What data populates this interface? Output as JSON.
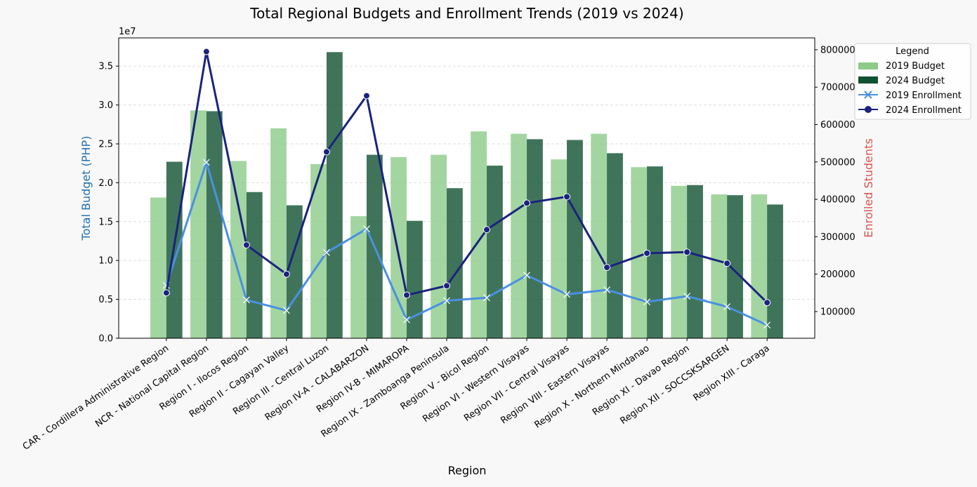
{
  "chart_data": {
    "type": "bar",
    "title": "Total Regional Budgets and Enrollment Trends (2019 vs 2024)",
    "xlabel": "Region",
    "ylabel": "Total Budget (PHP)",
    "ylabel_right": "Enrolled Students",
    "y_offset_label": "1e7",
    "ylim": [
      0,
      38630000
    ],
    "ylim_right": [
      28700,
      831700
    ],
    "yticks": [
      0.0,
      0.5,
      1.0,
      1.5,
      2.0,
      2.5,
      3.0,
      3.5
    ],
    "yticks_right": [
      100000,
      200000,
      300000,
      400000,
      500000,
      600000,
      700000,
      800000
    ],
    "grid": "horizontal dashed",
    "legend": {
      "title": "Legend",
      "placement": "outside-top-right"
    },
    "colors": {
      "budget_2019": "#8ccb88",
      "budget_2024": "#0f5132",
      "enroll_2019": "#4a90e2",
      "enroll_2024": "#1a237e",
      "ylabel_left": "#1f6fb0",
      "ylabel_right": "#d9534f"
    },
    "categories": [
      "CAR - Cordillera Administrative Region",
      "NCR - National Capital Region",
      "Region I - Ilocos Region",
      "Region II - Cagayan Valley",
      "Region III - Central Luzon",
      "Region IV-A - CALABARZON",
      "Region IV-B - MIMAROPA",
      "Region IX - Zamboanga Peninsula",
      "Region V - Bicol Region",
      "Region VI - Western Visayas",
      "Region VII - Central Visayas",
      "Region VIII - Eastern Visayas",
      "Region X - Northern Mindanao",
      "Region XI - Davao Region",
      "Region XII - SOCCSKSARGEN",
      "Region XIII - Caraga"
    ],
    "series": [
      {
        "name": "2019 Budget",
        "kind": "bar",
        "axis": "left",
        "values": [
          18100000,
          29300000,
          22800000,
          27000000,
          22400000,
          15700000,
          23300000,
          23600000,
          26600000,
          26300000,
          23000000,
          26300000,
          22000000,
          19600000,
          18500000,
          18500000
        ]
      },
      {
        "name": "2024 Budget",
        "kind": "bar",
        "axis": "left",
        "values": [
          22700000,
          29200000,
          18800000,
          17100000,
          36800000,
          23600000,
          15100000,
          19300000,
          22200000,
          25600000,
          25500000,
          23800000,
          22100000,
          19700000,
          18400000,
          17200000
        ]
      },
      {
        "name": "2019 Enrollment",
        "kind": "line",
        "marker": "x",
        "axis": "right",
        "values": [
          170000,
          499000,
          131000,
          103000,
          258000,
          321000,
          78000,
          129000,
          137000,
          197000,
          146000,
          158000,
          126000,
          141000,
          113000,
          64000
        ]
      },
      {
        "name": "2024 Enrollment",
        "kind": "line",
        "marker": "o",
        "axis": "right",
        "values": [
          150000,
          795000,
          278000,
          200000,
          527000,
          677000,
          144000,
          169000,
          319000,
          390000,
          407000,
          218000,
          256000,
          259000,
          229000,
          124000
        ]
      }
    ]
  }
}
